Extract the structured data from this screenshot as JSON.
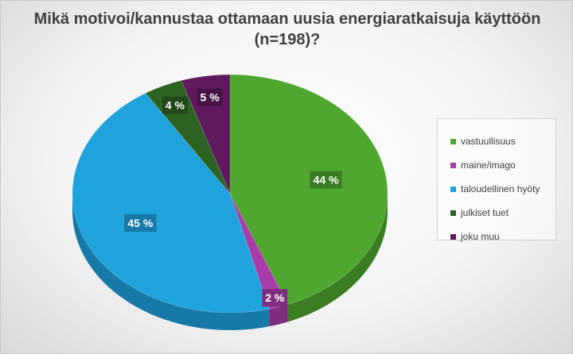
{
  "chart_data": {
    "type": "pie",
    "title": "Mikä motivoi/kannustaa ottamaan uusia energiaratkaisuja käyttöön (n=198)?",
    "categories": [
      "vastuullisuus",
      "maine/imago",
      "taloudellinen hyöty",
      "julkiset tuet",
      "joku muu"
    ],
    "values": [
      44,
      2,
      45,
      4,
      5
    ],
    "labels": [
      "44 %",
      "2 %",
      "45 %",
      "4 %",
      "5 %"
    ],
    "colors": [
      "#4ea72e",
      "#a93ca8",
      "#1ea3dc",
      "#2c6320",
      "#5e1a5c"
    ],
    "side_colors": [
      "#3b7d23",
      "#7f2d7e",
      "#1679a8",
      "#214a18",
      "#461445"
    ],
    "legend_position": "right",
    "style": "3d"
  }
}
